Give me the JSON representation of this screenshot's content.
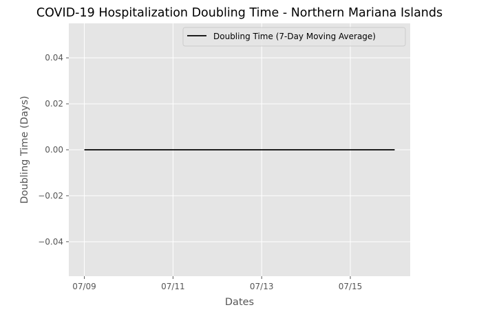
{
  "chart_data": {
    "type": "line",
    "title": "COVID-19 Hospitalization Doubling Time - Northern Mariana Islands",
    "xlabel": "Dates",
    "ylabel": "Doubling Time (Days)",
    "x": [
      "07/09",
      "07/10",
      "07/11",
      "07/12",
      "07/13",
      "07/14",
      "07/15",
      "07/16"
    ],
    "series": [
      {
        "name": "Doubling Time (7-Day Moving Average)",
        "values": [
          0,
          0,
          0,
          0,
          0,
          0,
          0,
          0
        ],
        "color": "#000000"
      }
    ],
    "x_ticks": [
      "07/09",
      "07/11",
      "07/13",
      "07/15"
    ],
    "y_ticks": [
      0.04,
      0.02,
      0.0,
      -0.02,
      -0.04
    ],
    "y_tick_labels": [
      "0.04",
      "0.02",
      "0.00",
      "−0.02",
      "−0.04"
    ],
    "ylim": [
      -0.055,
      0.055
    ],
    "xlim_days": [
      -0.35,
      7.35
    ],
    "grid": true,
    "legend_position": "upper right",
    "colors": {
      "plot_background": "#e5e5e5",
      "grid": "#ffffff",
      "text": "#555555",
      "line": "#000000"
    }
  }
}
